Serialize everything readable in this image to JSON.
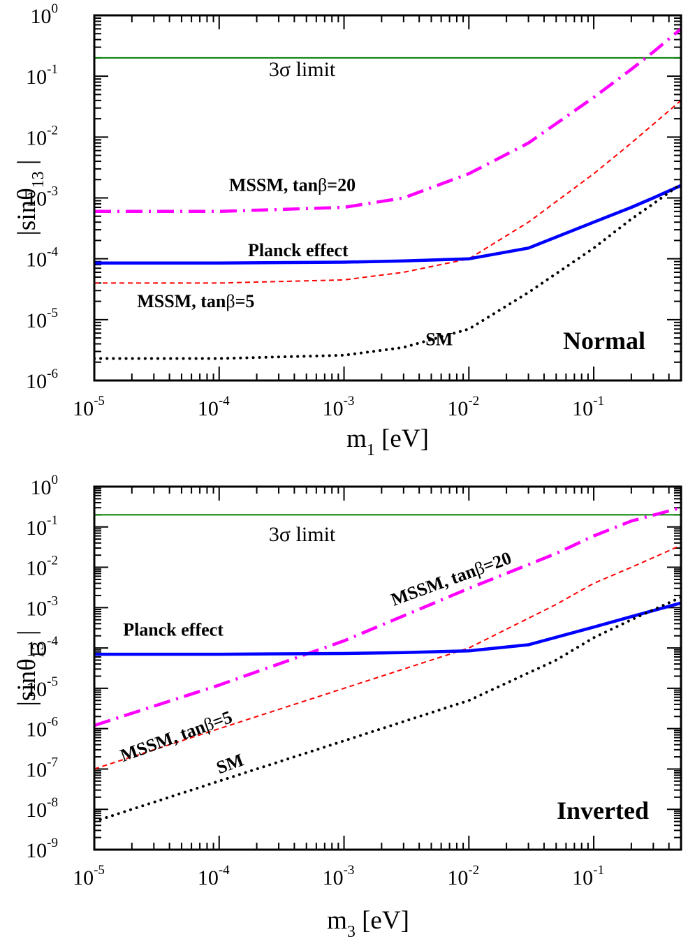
{
  "chart_data": [
    {
      "type": "line",
      "xscale": "log",
      "yscale": "log",
      "xlim": [
        1e-05,
        0.5
      ],
      "ylim": [
        1e-06,
        1
      ],
      "xlabel": "m",
      "xlabel_sub": "1",
      "xlabel_unit": "[eV]",
      "ylabel": "|sinθ",
      "ylabel_sub": "13",
      "ylabel_end": "|",
      "x_ticks": [
        {
          "base": "10",
          "exp": "-5",
          "value": 1e-05
        },
        {
          "base": "10",
          "exp": "-4",
          "value": 0.0001
        },
        {
          "base": "10",
          "exp": "-3",
          "value": 0.001
        },
        {
          "base": "10",
          "exp": "-2",
          "value": 0.01
        },
        {
          "base": "10",
          "exp": "-1",
          "value": 0.1
        }
      ],
      "y_ticks": [
        {
          "base": "10",
          "exp": "-6",
          "value": 1e-06
        },
        {
          "base": "10",
          "exp": "-5",
          "value": 1e-05
        },
        {
          "base": "10",
          "exp": "-4",
          "value": 0.0001
        },
        {
          "base": "10",
          "exp": "-3",
          "value": 0.001
        },
        {
          "base": "10",
          "exp": "-2",
          "value": 0.01
        },
        {
          "base": "10",
          "exp": "-1",
          "value": 0.1
        },
        {
          "base": "10",
          "exp": "0",
          "value": 1
        }
      ],
      "hierarchy_label": "Normal",
      "series": [
        {
          "key": "limit",
          "style": "solid-thin",
          "color": "#008000",
          "x": [
            1e-05,
            0.5
          ],
          "y": [
            0.2,
            0.2
          ]
        },
        {
          "key": "mssm20",
          "style": "dashdot",
          "color": "#ff00ff",
          "x": [
            1e-05,
            0.0001,
            0.001,
            0.003,
            0.01,
            0.03,
            0.1,
            0.2,
            0.3,
            0.5
          ],
          "y": [
            0.0006,
            0.0006,
            0.0007,
            0.001,
            0.0025,
            0.008,
            0.045,
            0.13,
            0.25,
            0.6
          ]
        },
        {
          "key": "mssm5",
          "style": "dashed",
          "color": "#ff0000",
          "x": [
            1e-05,
            0.0001,
            0.001,
            0.003,
            0.01,
            0.03,
            0.1,
            0.2,
            0.5
          ],
          "y": [
            4e-05,
            4e-05,
            4.5e-05,
            6e-05,
            0.0001,
            0.0004,
            0.0025,
            0.008,
            0.04
          ]
        },
        {
          "key": "planck",
          "style": "solid-thick",
          "color": "#0000ff",
          "x": [
            1e-05,
            0.0001,
            0.001,
            0.003,
            0.01,
            0.03,
            0.1,
            0.2,
            0.3,
            0.5
          ],
          "y": [
            8.5e-05,
            8.5e-05,
            8.8e-05,
            9.2e-05,
            0.0001,
            0.00015,
            0.0004,
            0.0007,
            0.001,
            0.0016
          ]
        },
        {
          "key": "sm",
          "style": "dotted",
          "color": "#000000",
          "x": [
            1e-05,
            0.0001,
            0.001,
            0.003,
            0.01,
            0.03,
            0.1,
            0.2,
            0.3,
            0.5
          ],
          "y": [
            2.3e-06,
            2.3e-06,
            2.6e-06,
            3.5e-06,
            7e-06,
            2.8e-05,
            0.00015,
            0.00045,
            0.0008,
            0.0017
          ]
        }
      ],
      "annotations": [
        {
          "text_parts": [
            "3",
            "σ",
            " limit"
          ],
          "x": 0.00025,
          "y": 0.1,
          "size": 30,
          "bold": false,
          "rotate": 0
        },
        {
          "text_parts": [
            "MSSM, tan",
            "β",
            "=20"
          ],
          "x": 0.00012,
          "y": 0.0013,
          "size": 26,
          "bold": true,
          "rotate": 0
        },
        {
          "text_parts": [
            "Planck effect"
          ],
          "x": 0.00017,
          "y": 0.00011,
          "size": 26,
          "bold": true,
          "rotate": 0
        },
        {
          "text_parts": [
            "MSSM, tan",
            "β",
            "=5"
          ],
          "x": 2.2e-05,
          "y": 1.6e-05,
          "size": 26,
          "bold": true,
          "rotate": 0
        },
        {
          "text_parts": [
            "SM"
          ],
          "x": 0.0045,
          "y": 3.8e-06,
          "size": 26,
          "bold": true,
          "rotate": 0
        }
      ]
    },
    {
      "type": "line",
      "xscale": "log",
      "yscale": "log",
      "xlim": [
        1e-05,
        0.5
      ],
      "ylim": [
        1e-09,
        1
      ],
      "xlabel": "m",
      "xlabel_sub": "3",
      "xlabel_unit": "[eV]",
      "ylabel": "|sinθ",
      "ylabel_sub": "13",
      "ylabel_end": "|",
      "x_ticks": [
        {
          "base": "10",
          "exp": "-5",
          "value": 1e-05
        },
        {
          "base": "10",
          "exp": "-4",
          "value": 0.0001
        },
        {
          "base": "10",
          "exp": "-3",
          "value": 0.001
        },
        {
          "base": "10",
          "exp": "-2",
          "value": 0.01
        },
        {
          "base": "10",
          "exp": "-1",
          "value": 0.1
        }
      ],
      "y_ticks": [
        {
          "base": "10",
          "exp": "-9",
          "value": 1e-09
        },
        {
          "base": "10",
          "exp": "-8",
          "value": 1e-08
        },
        {
          "base": "10",
          "exp": "-7",
          "value": 1e-07
        },
        {
          "base": "10",
          "exp": "-6",
          "value": 1e-06
        },
        {
          "base": "10",
          "exp": "-5",
          "value": 1e-05
        },
        {
          "base": "10",
          "exp": "-4",
          "value": 0.0001
        },
        {
          "base": "10",
          "exp": "-3",
          "value": 0.001
        },
        {
          "base": "10",
          "exp": "-2",
          "value": 0.01
        },
        {
          "base": "10",
          "exp": "-1",
          "value": 0.1
        },
        {
          "base": "10",
          "exp": "0",
          "value": 1
        }
      ],
      "hierarchy_label": "Inverted",
      "series": [
        {
          "key": "limit",
          "style": "solid-thin",
          "color": "#008000",
          "x": [
            1e-05,
            0.5
          ],
          "y": [
            0.2,
            0.2
          ]
        },
        {
          "key": "mssm20",
          "style": "dashdot",
          "color": "#ff00ff",
          "x": [
            1e-05,
            0.0001,
            0.001,
            0.01,
            0.05,
            0.1,
            0.2,
            0.5
          ],
          "y": [
            1.2e-06,
            1.2e-05,
            0.00015,
            0.003,
            0.022,
            0.06,
            0.14,
            0.3
          ]
        },
        {
          "key": "mssm5",
          "style": "dashed",
          "color": "#ff0000",
          "x": [
            1e-05,
            0.0001,
            0.001,
            0.01,
            0.05,
            0.1,
            0.2,
            0.5
          ],
          "y": [
            1e-07,
            1e-06,
            1e-05,
            0.0001,
            0.0012,
            0.004,
            0.01,
            0.035
          ]
        },
        {
          "key": "planck",
          "style": "solid-thick",
          "color": "#0000ff",
          "x": [
            1e-05,
            0.0001,
            0.001,
            0.003,
            0.01,
            0.03,
            0.1,
            0.2,
            0.5
          ],
          "y": [
            7e-05,
            7e-05,
            7.3e-05,
            7.7e-05,
            8.5e-05,
            0.00012,
            0.00033,
            0.0006,
            0.0013
          ]
        },
        {
          "key": "sm",
          "style": "dotted",
          "color": "#000000",
          "x": [
            1e-05,
            0.0001,
            0.001,
            0.01,
            0.05,
            0.1,
            0.2,
            0.5
          ],
          "y": [
            5e-09,
            5e-08,
            5e-07,
            5e-06,
            5e-05,
            0.00018,
            0.0005,
            0.0018
          ]
        }
      ],
      "annotations": [
        {
          "text_parts": [
            "3",
            "σ",
            " limit"
          ],
          "x": 0.00025,
          "y": 0.045,
          "size": 30,
          "bold": false,
          "rotate": 0
        },
        {
          "text_parts": [
            "Planck effect"
          ],
          "x": 1.7e-05,
          "y": 0.0002,
          "size": 26,
          "bold": true,
          "rotate": 0
        },
        {
          "text_parts": [
            "MSSM, tan",
            "β",
            "=20"
          ],
          "x": 0.0025,
          "y": 0.0011,
          "size": 26,
          "bold": true,
          "rotate": -20
        },
        {
          "text_parts": [
            "MSSM, tan",
            "β",
            "=5"
          ],
          "x": 1.7e-05,
          "y": 1.5e-07,
          "size": 26,
          "bold": true,
          "rotate": -20
        },
        {
          "text_parts": [
            "SM"
          ],
          "x": 0.0001,
          "y": 7.5e-08,
          "size": 26,
          "bold": true,
          "rotate": -20
        }
      ]
    }
  ]
}
